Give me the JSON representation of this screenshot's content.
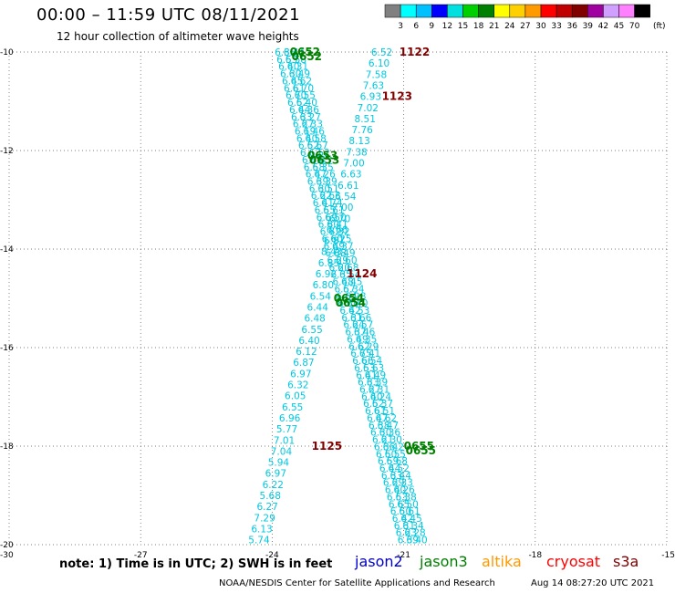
{
  "title": "00:00 – 11:59 UTC 08/11/2021",
  "subtitle": "12 hour collection of altimeter wave heights",
  "colorbar": {
    "unit": "(ft)",
    "labels": [
      "3",
      "6",
      "9",
      "12",
      "15",
      "18",
      "21",
      "24",
      "27",
      "30",
      "33",
      "36",
      "39",
      "42",
      "45",
      "70"
    ],
    "colors": [
      "#808080",
      "#00ffff",
      "#00c0ff",
      "#0000ff",
      "#00e0e0",
      "#00d000",
      "#008000",
      "#ffff00",
      "#ffd000",
      "#ff9900",
      "#ff0000",
      "#c00000",
      "#800000",
      "#a000a0",
      "#d0a0ff",
      "#ff80ff",
      "#000000"
    ]
  },
  "axes": {
    "x_ticks": [
      "-30",
      "-27",
      "-24",
      "-21",
      "-18",
      "-15"
    ],
    "y_ticks": [
      "-10",
      "-12",
      "-14",
      "-16",
      "-18",
      "-20"
    ],
    "lon_range": [
      -30,
      -15
    ],
    "lat_range": [
      -20,
      -10
    ]
  },
  "track_a": {
    "color": "#00c8e0",
    "start": {
      "lon": -23.7,
      "lat": -10.0
    },
    "end": {
      "lon": -20.9,
      "lat": -19.9
    },
    "values": [
      "6.36",
      "6.55",
      "6.40",
      "6.30",
      "6.45",
      "6.61",
      "6.70",
      "6.52",
      "6.44",
      "6.33",
      "6.27",
      "6.19",
      "6.40",
      "6.52",
      "6.63",
      "6.71",
      "6.58",
      "6.47",
      "6.39",
      "6.30",
      "6.22",
      "6.41",
      "6.55",
      "6.69",
      "6.80",
      "6.72",
      "6.60",
      "6.49",
      "6.38",
      "6.29",
      "6.20",
      "6.35",
      "6.48",
      "6.57",
      "6.64",
      "6.50",
      "6.42",
      "6.31",
      "6.24",
      "6.37",
      "6.49",
      "6.62",
      "6.75",
      "6.66",
      "6.53",
      "6.41",
      "6.33",
      "6.27",
      "6.40",
      "6.52",
      "6.61",
      "6.47",
      "6.38",
      "6.30",
      "6.21",
      "6.36",
      "6.50",
      "6.59",
      "6.44",
      "6.33",
      "6.29",
      "6.40",
      "6.53",
      "6.65",
      "6.50",
      "6.42",
      "6.31",
      "6.23",
      "6.39"
    ]
  },
  "track_b": {
    "color": "#00c8e0",
    "start": {
      "lon": -23.5,
      "lat": -10.0
    },
    "end": {
      "lon": -20.7,
      "lat": -19.9
    },
    "values": [
      "6.44",
      "6.58",
      "6.31",
      "6.49",
      "6.62",
      "6.70",
      "6.55",
      "6.40",
      "6.36",
      "6.27",
      "6.33",
      "6.46",
      "6.58",
      "6.67",
      "6.52",
      "6.43",
      "6.35",
      "6.26",
      "6.39",
      "6.51",
      "6.63",
      "6.74",
      "6.61",
      "6.50",
      "6.41",
      "6.32",
      "6.25",
      "6.37",
      "6.49",
      "6.60",
      "6.68",
      "6.54",
      "6.45",
      "6.34",
      "6.28",
      "6.40",
      "6.53",
      "6.66",
      "6.57",
      "6.46",
      "6.35",
      "6.29",
      "6.41",
      "6.54",
      "6.63",
      "6.49",
      "6.39",
      "6.31",
      "6.24",
      "6.37",
      "6.51",
      "6.62",
      "6.47",
      "6.36",
      "6.30",
      "6.42",
      "6.55",
      "6.68",
      "6.52",
      "6.44",
      "6.33",
      "6.26",
      "6.38",
      "6.50",
      "6.61",
      "6.45",
      "6.34",
      "6.28",
      "6.40"
    ]
  },
  "track_c": {
    "color": "#00c8e0",
    "start": {
      "lon": -21.5,
      "lat": -10.0
    },
    "end": {
      "lon": -24.3,
      "lat": -19.9
    },
    "values": [
      "6.52",
      "6.10",
      "7.58",
      "7.63",
      "6.93",
      "7.02",
      "8.51",
      "7.76",
      "8.13",
      "7.38",
      "7.00",
      "6.63",
      "6.61",
      "6.54",
      "7.00",
      "6.70",
      "6.66",
      "6.87",
      "8.43",
      "6.85",
      "6.92",
      "6.80",
      "6.54",
      "6.44",
      "6.48",
      "6.55",
      "6.40",
      "6.12",
      "6.87",
      "6.97",
      "6.32",
      "6.05",
      "6.55",
      "6.96",
      "5.77",
      "7.01",
      "7.04",
      "5.94",
      "6.97",
      "6.22",
      "5.68",
      "6.27",
      "7.29",
      "6.13",
      "5.74"
    ]
  },
  "pass_labels": [
    {
      "text": "0652",
      "color": "#008000",
      "lon": -23.6,
      "lat": -10.0
    },
    {
      "text": "0653",
      "color": "#008000",
      "lon": -23.2,
      "lat": -12.1
    },
    {
      "text": "0654",
      "color": "#008000",
      "lon": -22.6,
      "lat": -15.0
    },
    {
      "text": "0655",
      "color": "#008000",
      "lon": -21.0,
      "lat": -18.0
    },
    {
      "text": "1122",
      "color": "#800000",
      "lon": -21.1,
      "lat": -10.0
    },
    {
      "text": "1123",
      "color": "#800000",
      "lon": -21.5,
      "lat": -10.9
    },
    {
      "text": "1124",
      "color": "#800000",
      "lon": -22.3,
      "lat": -14.5
    },
    {
      "text": "1125",
      "color": "#800000",
      "lon": -23.1,
      "lat": -18.0
    }
  ],
  "note": "note:  1) Time is in UTC;  2) SWH is in feet",
  "satellites": [
    {
      "name": "jason2",
      "color": "#0000cc"
    },
    {
      "name": "jason3",
      "color": "#008000"
    },
    {
      "name": "altika",
      "color": "#ff9900"
    },
    {
      "name": "cryosat",
      "color": "#ff0000"
    },
    {
      "name": "s3a",
      "color": "#800000"
    }
  ],
  "footer": {
    "center": "NOAA/NESDIS Center for Satellite Applications and Research",
    "right": "Aug 14 08:27:20 UTC 2021"
  }
}
